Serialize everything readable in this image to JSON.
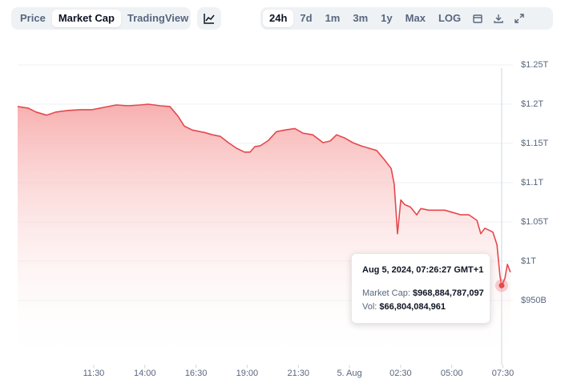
{
  "toolbar": {
    "views": [
      "Price",
      "Market Cap",
      "TradingView"
    ],
    "ranges": [
      "24h",
      "7d",
      "1m",
      "3m",
      "1y",
      "Max",
      "LOG"
    ]
  },
  "chart_data": {
    "type": "area",
    "color": "#e5484d",
    "grid": true,
    "x": [
      7.78,
      8.29,
      8.68,
      9.19,
      9.66,
      10.25,
      10.83,
      11.42,
      12.01,
      12.6,
      13.19,
      13.77,
      14.16,
      14.75,
      15.22,
      15.61,
      15.93,
      16.32,
      16.91,
      17.3,
      17.69,
      18.08,
      18.47,
      18.87,
      19.14,
      19.38,
      19.65,
      20.04,
      20.43,
      20.83,
      21.33,
      21.73,
      22.2,
      22.71,
      23.06,
      23.37,
      23.76,
      24.16,
      24.55,
      24.94,
      25.33,
      25.72,
      26.04,
      26.19,
      26.35,
      26.51,
      26.7,
      26.98,
      27.29,
      27.49,
      27.88,
      28.27,
      28.66,
      29.05,
      29.45,
      29.84,
      30.23,
      30.42,
      30.62,
      31.01,
      31.21,
      31.36,
      31.44,
      31.6,
      31.72,
      31.87
    ],
    "values": [
      1197,
      1195,
      1190,
      1186,
      1190,
      1192,
      1193,
      1193,
      1196,
      1199,
      1198,
      1199,
      1200,
      1198,
      1197,
      1185,
      1172,
      1167,
      1164,
      1161,
      1159,
      1151,
      1144,
      1139,
      1139,
      1146,
      1147,
      1154,
      1165,
      1167,
      1169,
      1163,
      1161,
      1151,
      1153,
      1161,
      1157,
      1151,
      1147,
      1144,
      1141,
      1129,
      1118,
      1098,
      1035,
      1078,
      1072,
      1069,
      1059,
      1067,
      1065,
      1065,
      1065,
      1062,
      1059,
      1059,
      1052,
      1035,
      1042,
      1037,
      1021,
      981,
      969,
      978,
      996,
      986
    ],
    "xlim": [
      7.78,
      31.99
    ],
    "ylim": [
      868,
      1250
    ],
    "xticks": [
      {
        "value": 11.5,
        "label": "11:30"
      },
      {
        "value": 14,
        "label": "14:00"
      },
      {
        "value": 16.5,
        "label": "16:30"
      },
      {
        "value": 19,
        "label": "19:00"
      },
      {
        "value": 21.5,
        "label": "21:30"
      },
      {
        "value": 24,
        "label": "5. Aug"
      },
      {
        "value": 26.5,
        "label": "02:30"
      },
      {
        "value": 29,
        "label": "05:00"
      },
      {
        "value": 31.5,
        "label": "07:30"
      }
    ],
    "yticks": [
      {
        "value": 1250,
        "label": "$1.25T"
      },
      {
        "value": 1200,
        "label": "$1.2T"
      },
      {
        "value": 1150,
        "label": "$1.15T"
      },
      {
        "value": 1100,
        "label": "$1.1T"
      },
      {
        "value": 1050,
        "label": "$1.05T"
      },
      {
        "value": 1000,
        "label": "$1T"
      },
      {
        "value": 950,
        "label": "$950B"
      }
    ],
    "tooltip": {
      "x": 31.44,
      "title": "Aug 5, 2024, 07:26:27 GMT+1",
      "rows": [
        {
          "label": "Market Cap:",
          "value": "$968,884,787,097"
        },
        {
          "label": "Vol:",
          "value": "$66,804,084,961"
        }
      ]
    }
  }
}
